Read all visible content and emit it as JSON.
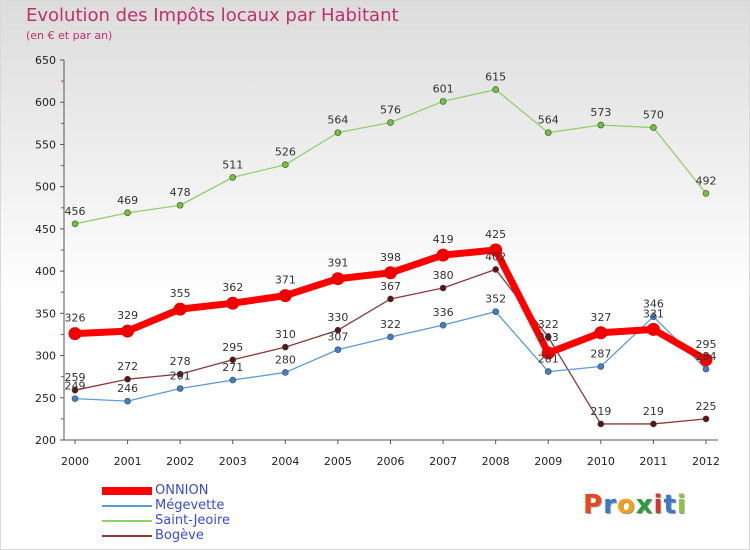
{
  "header": {
    "title": "Evolution des Impôts locaux par Habitant",
    "subtitle": "(en € et par an)"
  },
  "brand": {
    "logo_letters": [
      "P",
      "r",
      "o",
      "x",
      "i",
      "t",
      "i"
    ],
    "logo_colors": [
      "#e8471e",
      "#3a78c9",
      "#f0a214",
      "#2d9c3a",
      "#d6342f",
      "#3a78c9",
      "#8cc63f"
    ]
  },
  "chart_data": {
    "type": "line",
    "title": "Evolution des Impôts locaux par Habitant",
    "subtitle": "(en € et par an)",
    "xlabel": "",
    "ylabel": "",
    "ylim": [
      200,
      650
    ],
    "yticks": [
      200,
      250,
      300,
      350,
      400,
      450,
      500,
      550,
      600,
      650
    ],
    "categories": [
      "2000",
      "2001",
      "2002",
      "2003",
      "2004",
      "2005",
      "2006",
      "2007",
      "2008",
      "2009",
      "2010",
      "2011",
      "2012"
    ],
    "grid": false,
    "legend_position": "bottom-left",
    "series": [
      {
        "name": "Saint-Jeoire",
        "color": "#8fd16a",
        "marker": "#6cc531",
        "width": 1.3,
        "values": [
          456,
          469,
          478,
          511,
          526,
          564,
          576,
          601,
          615,
          564,
          573,
          570,
          492
        ]
      },
      {
        "name": "Bogève",
        "color": "#8b3a3a",
        "marker": "#5e1414",
        "width": 1.3,
        "values": [
          259,
          272,
          278,
          295,
          310,
          330,
          367,
          380,
          402,
          322,
          219,
          219,
          225
        ]
      },
      {
        "name": "Mégevette",
        "color": "#5b9bd5",
        "marker": "#3f80c8",
        "width": 1.3,
        "values": [
          249,
          246,
          261,
          271,
          280,
          307,
          322,
          336,
          352,
          281,
          287,
          346,
          284
        ]
      },
      {
        "name": "ONNION",
        "color": "#ff0000",
        "marker": "#ee0000",
        "width": 7,
        "values": [
          326,
          329,
          355,
          362,
          371,
          391,
          398,
          419,
          425,
          303,
          327,
          331,
          295
        ]
      }
    ],
    "legend_order": [
      "ONNION",
      "Mégevette",
      "Saint-Jeoire",
      "Bogève"
    ]
  }
}
